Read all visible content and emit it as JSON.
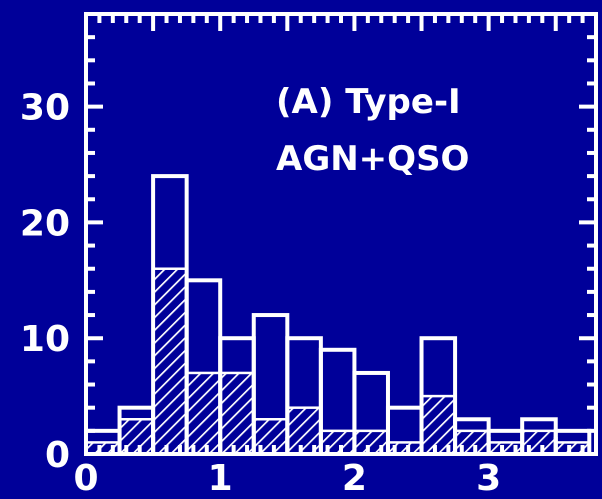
{
  "chart_data": {
    "type": "bar",
    "style": "histogram",
    "annotation_lines": [
      "(A) Type-I",
      "AGN+QSO"
    ],
    "x_tick_labels": [
      "0",
      "1",
      "2",
      "3"
    ],
    "y_tick_labels": [
      "0",
      "10",
      "20",
      "30"
    ],
    "xlim": [
      0,
      3.8
    ],
    "ylim": [
      0,
      38
    ],
    "bin_width": 0.25,
    "x": [
      0.0,
      0.25,
      0.5,
      0.75,
      1.0,
      1.25,
      1.5,
      1.75,
      2.0,
      2.25,
      2.5,
      2.75,
      3.0,
      3.25,
      3.5
    ],
    "series": [
      {
        "fill": "outline",
        "values": [
          2,
          4,
          24,
          15,
          10,
          12,
          10,
          9,
          7,
          4,
          10,
          3,
          2,
          3,
          2
        ]
      },
      {
        "fill": "hatched",
        "values": [
          1,
          3,
          16,
          7,
          7,
          3,
          4,
          2,
          2,
          1,
          5,
          2,
          1,
          2,
          1
        ]
      }
    ],
    "grid": false,
    "colors": {
      "background": "#000099",
      "foreground": "#ffffff"
    }
  }
}
